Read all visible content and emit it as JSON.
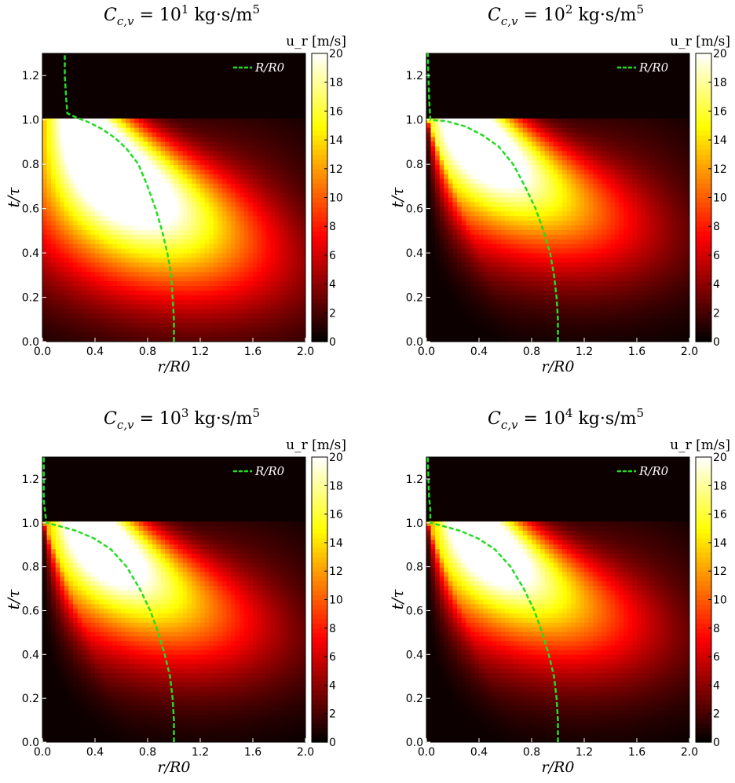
{
  "chart_data": [
    {
      "type": "heatmap",
      "title": "C_{c,v} = 10^1 kg·s/m^5",
      "title_parts": {
        "base": "C",
        "sub": "c,v",
        "eq": " = 10",
        "exp": "1",
        "unit": " kg·s/m",
        "unit_exp": "5"
      },
      "xlabel": "r/R0",
      "ylabel": "t/τ",
      "xlim": [
        0.0,
        2.0
      ],
      "ylim": [
        0.0,
        1.3
      ],
      "xticks": [
        "0.0",
        "0.4",
        "0.8",
        "1.2",
        "1.6",
        "2.0"
      ],
      "yticks": [
        "0.0",
        "0.2",
        "0.4",
        "0.6",
        "0.8",
        "1.0",
        "1.2"
      ],
      "colorbar": {
        "label": "u_r [m/s]",
        "min": 0,
        "max": 20,
        "ticks": [
          "0",
          "2",
          "4",
          "6",
          "8",
          "10",
          "12",
          "14",
          "16",
          "18",
          "20"
        ],
        "colormap": "hot"
      },
      "legend": {
        "entries": [
          "R/R0"
        ],
        "placement": "top-right"
      },
      "line_color": "#22dd22",
      "curve": {
        "name": "R/R0",
        "x": [
          1.0,
          1.0,
          0.99,
          0.98,
          0.95,
          0.91,
          0.86,
          0.8,
          0.73,
          0.64,
          0.55,
          0.45,
          0.35,
          0.26,
          0.19,
          0.18,
          0.17,
          0.17
        ],
        "y": [
          0.0,
          0.1,
          0.2,
          0.3,
          0.4,
          0.5,
          0.6,
          0.7,
          0.8,
          0.87,
          0.92,
          0.96,
          0.99,
          1.01,
          1.03,
          1.1,
          1.2,
          1.3
        ]
      },
      "field": {
        "peak_r": 0.3,
        "peak_t": 0.87,
        "peak_value": 20,
        "front_t": 1.0
      }
    },
    {
      "type": "heatmap",
      "title": "C_{c,v} = 10^2 kg·s/m^5",
      "title_parts": {
        "base": "C",
        "sub": "c,v",
        "eq": " = 10",
        "exp": "2",
        "unit": " kg·s/m",
        "unit_exp": "5"
      },
      "xlabel": "r/R0",
      "ylabel": "t/τ",
      "xlim": [
        0.0,
        2.0
      ],
      "ylim": [
        0.0,
        1.3
      ],
      "xticks": [
        "0.0",
        "0.4",
        "0.8",
        "1.2",
        "1.6",
        "2.0"
      ],
      "yticks": [
        "0.0",
        "0.2",
        "0.4",
        "0.6",
        "0.8",
        "1.0",
        "1.2"
      ],
      "colorbar": {
        "label": "u_r [m/s]",
        "min": 0,
        "max": 20,
        "ticks": [
          "0",
          "2",
          "4",
          "6",
          "8",
          "10",
          "12",
          "14",
          "16",
          "18",
          "20"
        ],
        "colormap": "hot"
      },
      "legend": {
        "entries": [
          "R/R0"
        ],
        "placement": "top-right"
      },
      "line_color": "#22dd22",
      "curve": {
        "name": "R/R0",
        "x": [
          1.0,
          1.0,
          0.99,
          0.97,
          0.94,
          0.89,
          0.83,
          0.75,
          0.66,
          0.55,
          0.43,
          0.3,
          0.15,
          0.03,
          0.02,
          0.01
        ],
        "y": [
          0.0,
          0.1,
          0.2,
          0.3,
          0.4,
          0.5,
          0.6,
          0.7,
          0.8,
          0.88,
          0.93,
          0.97,
          0.995,
          1.0,
          1.1,
          1.3
        ]
      },
      "field": {
        "peak_r": 0.3,
        "peak_t": 0.97,
        "peak_value": 20,
        "front_t": 1.0
      }
    },
    {
      "type": "heatmap",
      "title": "C_{c,v} = 10^3 kg·s/m^5",
      "title_parts": {
        "base": "C",
        "sub": "c,v",
        "eq": " = 10",
        "exp": "3",
        "unit": " kg·s/m",
        "unit_exp": "5"
      },
      "xlabel": "r/R0",
      "ylabel": "t/τ",
      "xlim": [
        0.0,
        2.0
      ],
      "ylim": [
        0.0,
        1.3
      ],
      "xticks": [
        "0.0",
        "0.4",
        "0.8",
        "1.2",
        "1.6",
        "2.0"
      ],
      "yticks": [
        "0.0",
        "0.2",
        "0.4",
        "0.6",
        "0.8",
        "1.0",
        "1.2"
      ],
      "colorbar": {
        "label": "u_r [m/s]",
        "min": 0,
        "max": 20,
        "ticks": [
          "0",
          "2",
          "4",
          "6",
          "8",
          "10",
          "12",
          "14",
          "16",
          "18",
          "20"
        ],
        "colormap": "hot"
      },
      "legend": {
        "entries": [
          "R/R0"
        ],
        "placement": "top-right"
      },
      "line_color": "#22dd22",
      "curve": {
        "name": "R/R0",
        "x": [
          1.0,
          1.0,
          0.99,
          0.97,
          0.93,
          0.88,
          0.82,
          0.74,
          0.64,
          0.52,
          0.39,
          0.25,
          0.1,
          0.03,
          0.02,
          0.01,
          0.01
        ],
        "y": [
          0.0,
          0.1,
          0.2,
          0.3,
          0.4,
          0.5,
          0.6,
          0.7,
          0.8,
          0.88,
          0.93,
          0.965,
          0.99,
          1.0,
          1.05,
          1.1,
          1.3
        ]
      },
      "field": {
        "peak_r": 0.35,
        "peak_t": 0.985,
        "peak_value": 20,
        "front_t": 1.0
      }
    },
    {
      "type": "heatmap",
      "title": "C_{c,v} = 10^4 kg·s/m^5",
      "title_parts": {
        "base": "C",
        "sub": "c,v",
        "eq": " = 10",
        "exp": "4",
        "unit": " kg·s/m",
        "unit_exp": "5"
      },
      "xlabel": "r/R0",
      "ylabel": "t/τ",
      "xlim": [
        0.0,
        2.0
      ],
      "ylim": [
        0.0,
        1.3
      ],
      "xticks": [
        "0.0",
        "0.4",
        "0.8",
        "1.2",
        "1.6",
        "2.0"
      ],
      "yticks": [
        "0.0",
        "0.2",
        "0.4",
        "0.6",
        "0.8",
        "1.0",
        "1.2"
      ],
      "colorbar": {
        "label": "u_r [m/s]",
        "min": 0,
        "max": 20,
        "ticks": [
          "0",
          "2",
          "4",
          "6",
          "8",
          "10",
          "12",
          "14",
          "16",
          "18",
          "20"
        ],
        "colormap": "hot"
      },
      "legend": {
        "entries": [
          "R/R0"
        ],
        "placement": "top-right"
      },
      "line_color": "#22dd22",
      "curve": {
        "name": "R/R0",
        "x": [
          1.0,
          1.0,
          0.99,
          0.97,
          0.93,
          0.88,
          0.82,
          0.74,
          0.64,
          0.52,
          0.39,
          0.25,
          0.1,
          0.03,
          0.03,
          0.02,
          0.01
        ],
        "y": [
          0.0,
          0.1,
          0.2,
          0.3,
          0.4,
          0.5,
          0.6,
          0.7,
          0.8,
          0.88,
          0.93,
          0.965,
          0.99,
          1.0,
          1.06,
          1.12,
          1.3
        ]
      },
      "field": {
        "peak_r": 0.35,
        "peak_t": 0.985,
        "peak_value": 20,
        "front_t": 1.0
      }
    }
  ]
}
